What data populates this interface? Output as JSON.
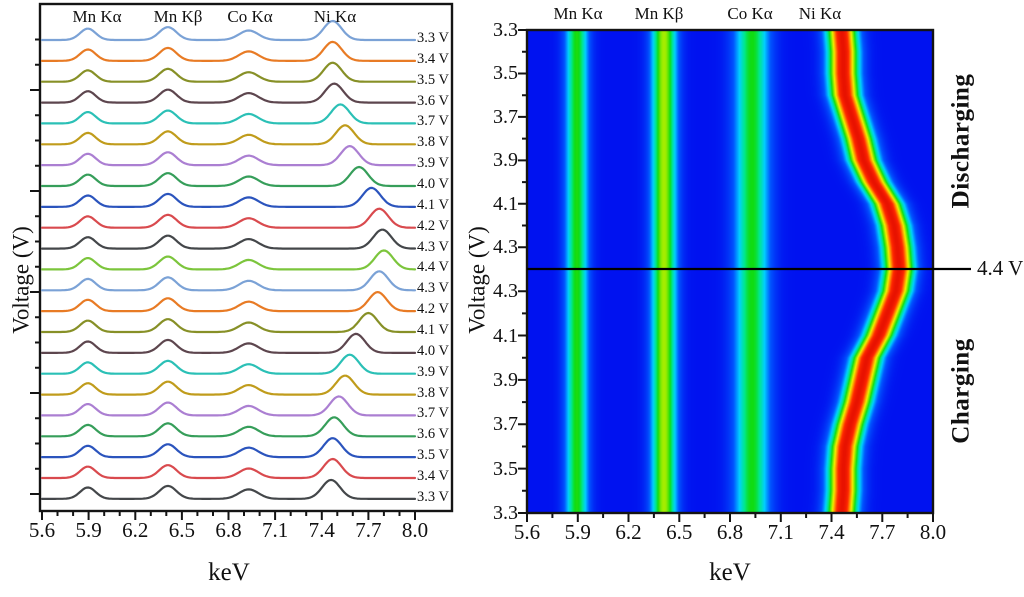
{
  "left_panel": {
    "peak_labels": [
      "Mn Kα",
      "Mn Kβ",
      "Co Kα",
      "Ni Kα"
    ],
    "xlabel": "keV",
    "ylabel": "Voltage (V)",
    "x_tick_labels": [
      "5.6",
      "5.9",
      "6.2",
      "6.5",
      "6.8",
      "7.1",
      "7.4",
      "7.7",
      "8.0"
    ]
  },
  "right_panel": {
    "peak_labels": [
      "Mn Kα",
      "Mn Kβ",
      "Co Kα",
      "Ni Kα"
    ],
    "xlabel": "keV",
    "ylabel": "Voltage (V)",
    "x_tick_labels": [
      "5.6",
      "5.9",
      "6.2",
      "6.5",
      "6.8",
      "7.1",
      "7.4",
      "7.7",
      "8.0"
    ],
    "y_tick_labels_discharging": [
      "3.3",
      "3.5",
      "3.7",
      "3.9",
      "4.1",
      "4.3"
    ],
    "y_tick_labels_charging": [
      "4.3",
      "4.1",
      "3.9",
      "3.7",
      "3.5",
      "3.3"
    ],
    "side_label_discharging": "Discharging",
    "side_label_charging": "Charging",
    "line_annotation": "4.4 V"
  },
  "colors": {
    "frame": "#141414",
    "background": "#ffffff",
    "curve_cycle": [
      "#7ba2d6",
      "#e87b25",
      "#879027",
      "#5d464e",
      "#2bc0b6",
      "#c09c1c",
      "#ab7fd2",
      "#369e5a",
      "#2b54bd",
      "#d94a4e",
      "#44474a",
      "#7cc53c"
    ],
    "jet_stops": [
      [
        0.0,
        "#0012f0"
      ],
      [
        0.18,
        "#0055ff"
      ],
      [
        0.32,
        "#00d0ff"
      ],
      [
        0.44,
        "#00e88c"
      ],
      [
        0.52,
        "#10dc10"
      ],
      [
        0.63,
        "#9aec00"
      ],
      [
        0.7,
        "#f2f200"
      ],
      [
        0.8,
        "#ff9000"
      ],
      [
        0.9,
        "#ff2800"
      ],
      [
        1.0,
        "#e81200"
      ]
    ]
  },
  "chart_data": [
    {
      "type": "line",
      "description": "Stacked XRF emission spectra recorded at 0.1 V steps: charging 3.3→4.4 V (bottom to middle), discharging 4.4→3.3 V (middle to top)",
      "xlabel": "keV",
      "ylabel": "Voltage (V)",
      "x_range": [
        5.6,
        8.0
      ],
      "x_ticks": [
        5.6,
        5.9,
        6.2,
        6.5,
        6.8,
        7.1,
        7.4,
        7.7,
        8.0
      ],
      "peak_annotations": [
        {
          "label": "Mn Kα",
          "keV": 5.9
        },
        {
          "label": "Mn Kβ",
          "keV": 6.41
        },
        {
          "label": "Co Kα",
          "keV": 6.93
        },
        {
          "label": "Ni Kα",
          "keV_range": [
            7.46,
            7.8
          ],
          "note": "shifts with voltage"
        }
      ],
      "common_peaks": {
        "mn_ka": {
          "center": 5.895,
          "sigma": 0.05,
          "rel_height": 0.6
        },
        "mn_kb": {
          "center": 6.41,
          "sigma": 0.055,
          "rel_height": 0.68
        },
        "co_ka": {
          "center": 6.93,
          "sigma": 0.062,
          "rel_height": 0.5
        },
        "ni_ka": {
          "sigma": 0.058,
          "rel_height": 1.0
        }
      },
      "series": [
        {
          "voltage": "3.3 V",
          "ni_ka_center": 7.47,
          "color": "#7ba2d6"
        },
        {
          "voltage": "3.4 V",
          "ni_ka_center": 7.47,
          "color": "#e87b25"
        },
        {
          "voltage": "3.5 V",
          "ni_ka_center": 7.47,
          "color": "#879027"
        },
        {
          "voltage": "3.6 V",
          "ni_ka_center": 7.48,
          "color": "#5d464e"
        },
        {
          "voltage": "3.7 V",
          "ni_ka_center": 7.52,
          "color": "#2bc0b6"
        },
        {
          "voltage": "3.8 V",
          "ni_ka_center": 7.55,
          "color": "#c09c1c"
        },
        {
          "voltage": "3.9 V",
          "ni_ka_center": 7.58,
          "color": "#ab7fd2"
        },
        {
          "voltage": "4.0 V",
          "ni_ka_center": 7.64,
          "color": "#369e5a"
        },
        {
          "voltage": "4.1 V",
          "ni_ka_center": 7.72,
          "color": "#2b54bd"
        },
        {
          "voltage": "4.2 V",
          "ni_ka_center": 7.77,
          "color": "#d94a4e"
        },
        {
          "voltage": "4.3 V",
          "ni_ka_center": 7.79,
          "color": "#44474a"
        },
        {
          "voltage": "4.4 V",
          "ni_ka_center": 7.8,
          "color": "#7cc53c"
        },
        {
          "voltage": "4.3 V",
          "ni_ka_center": 7.77,
          "color": "#7ba2d6"
        },
        {
          "voltage": "4.2 V",
          "ni_ka_center": 7.76,
          "color": "#e87b25"
        },
        {
          "voltage": "4.1 V",
          "ni_ka_center": 7.7,
          "color": "#879027"
        },
        {
          "voltage": "4.0 V",
          "ni_ka_center": 7.62,
          "color": "#5d464e"
        },
        {
          "voltage": "3.9 V",
          "ni_ka_center": 7.58,
          "color": "#2bc0b6"
        },
        {
          "voltage": "3.8 V",
          "ni_ka_center": 7.55,
          "color": "#c09c1c"
        },
        {
          "voltage": "3.7 V",
          "ni_ka_center": 7.51,
          "color": "#ab7fd2"
        },
        {
          "voltage": "3.6 V",
          "ni_ka_center": 7.48,
          "color": "#369e5a"
        },
        {
          "voltage": "3.5 V",
          "ni_ka_center": 7.47,
          "color": "#2b54bd"
        },
        {
          "voltage": "3.4 V",
          "ni_ka_center": 7.47,
          "color": "#d94a4e"
        },
        {
          "voltage": "3.3 V",
          "ni_ka_center": 7.46,
          "color": "#44474a"
        }
      ]
    },
    {
      "type": "heatmap",
      "description": "Intensity map (jet colormap) of the same spectra; y runs charging 3.3→4.4 V (bottom half, upward) then discharging 4.4→3.3 V (top half)",
      "xlabel": "keV",
      "ylabel": "Voltage (V)",
      "x_range": [
        5.6,
        8.0
      ],
      "x_ticks": [
        5.6,
        5.9,
        6.2,
        6.5,
        6.8,
        7.1,
        7.4,
        7.7,
        8.0
      ],
      "y_ticks_discharging_top_to_bottom": [
        3.3,
        3.5,
        3.7,
        3.9,
        4.1,
        4.3
      ],
      "y_ticks_charging_top_to_bottom": [
        4.3,
        4.1,
        3.9,
        3.7,
        3.5,
        3.3
      ],
      "colormap": "jet (blue → cyan → green → yellow → red)",
      "bands": [
        {
          "label": "Mn Kα",
          "center": 5.895,
          "sigma": 0.05,
          "intensity": 0.53
        },
        {
          "label": "Mn Kβ",
          "center": 6.41,
          "sigma": 0.055,
          "intensity": 0.64
        },
        {
          "label": "Co Kα",
          "center": 6.93,
          "sigma": 0.075,
          "intensity": 0.52
        }
      ],
      "ni_ka_track": {
        "sigma": 0.065,
        "intensity": 1.0,
        "charging": [
          [
            3.3,
            7.46
          ],
          [
            3.4,
            7.47
          ],
          [
            3.5,
            7.47
          ],
          [
            3.6,
            7.48
          ],
          [
            3.7,
            7.51
          ],
          [
            3.8,
            7.55
          ],
          [
            3.9,
            7.58
          ],
          [
            4.0,
            7.61
          ],
          [
            4.1,
            7.68
          ],
          [
            4.2,
            7.73
          ],
          [
            4.3,
            7.78
          ],
          [
            4.4,
            7.8
          ]
        ],
        "discharging": [
          [
            3.3,
            7.46
          ],
          [
            3.4,
            7.47
          ],
          [
            3.5,
            7.47
          ],
          [
            3.6,
            7.48
          ],
          [
            3.7,
            7.52
          ],
          [
            3.8,
            7.56
          ],
          [
            3.9,
            7.59
          ],
          [
            4.0,
            7.65
          ],
          [
            4.1,
            7.73
          ],
          [
            4.2,
            7.77
          ],
          [
            4.3,
            7.79
          ],
          [
            4.4,
            7.8
          ]
        ]
      },
      "annotations": [
        {
          "text": "4.4 V",
          "at_voltage": 4.4,
          "style": "horizontal black line across plot"
        },
        {
          "text": "Discharging",
          "position": "right side, top half"
        },
        {
          "text": "Charging",
          "position": "right side, bottom half"
        }
      ]
    }
  ]
}
